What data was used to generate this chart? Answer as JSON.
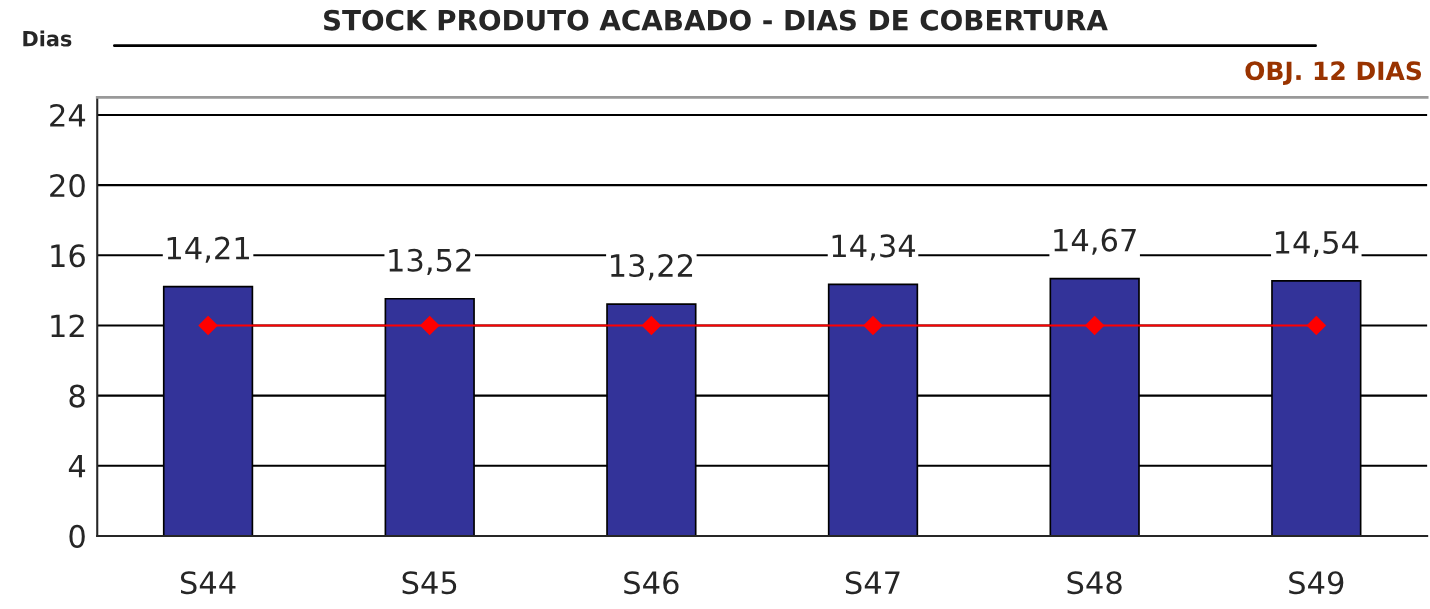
{
  "chart_data": {
    "type": "bar",
    "title": "STOCK PRODUTO ACABADO - DIAS DE COBERTURA",
    "ylabel": "Dias",
    "annotations": [
      "OBJ. 12 DIAS"
    ],
    "categories": [
      "S44",
      "S45",
      "S46",
      "S47",
      "S48",
      "S49"
    ],
    "series": [
      {
        "color": "#333399",
        "values": [
          14.21,
          13.52,
          13.22,
          14.34,
          14.67,
          14.54
        ],
        "value_labels": [
          "14,21",
          "13,52",
          "13,22",
          "14,34",
          "14,67",
          "14,54"
        ]
      },
      {
        "type": "line",
        "color": "#ff0000",
        "values": [
          12,
          12,
          12,
          12,
          12,
          12
        ],
        "marker": "diamond",
        "line_style": "solid"
      }
    ],
    "ylim": [
      0,
      25
    ],
    "yticks": [
      0,
      4,
      8,
      12,
      16,
      20,
      24
    ],
    "grid": "y",
    "legend": false
  }
}
